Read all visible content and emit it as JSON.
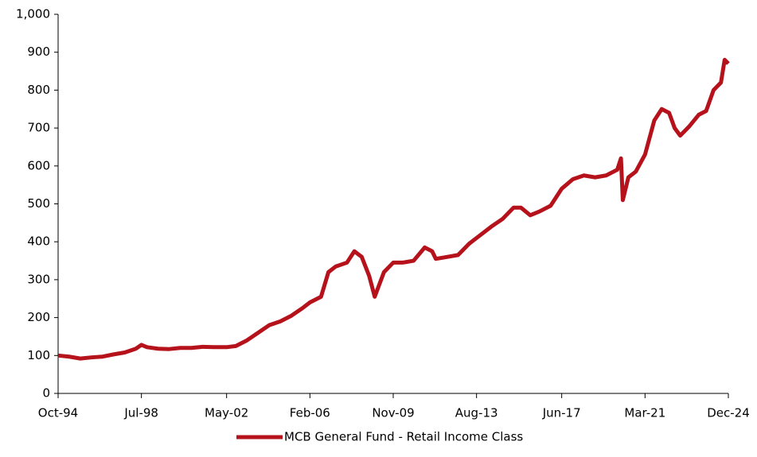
{
  "chart_data": {
    "type": "line",
    "x": [
      "1994-10",
      "1995-04",
      "1995-10",
      "1996-04",
      "1996-10",
      "1997-04",
      "1997-10",
      "1998-04",
      "1998-07",
      "1998-10",
      "1999-04",
      "1999-10",
      "2000-04",
      "2000-10",
      "2001-04",
      "2001-10",
      "2002-05",
      "2002-10",
      "2003-04",
      "2003-10",
      "2004-04",
      "2004-10",
      "2005-04",
      "2005-10",
      "2006-02",
      "2006-08",
      "2006-12",
      "2007-04",
      "2007-10",
      "2008-02",
      "2008-06",
      "2008-10",
      "2009-01",
      "2009-06",
      "2009-11",
      "2010-04",
      "2010-10",
      "2011-04",
      "2011-08",
      "2011-10",
      "2012-04",
      "2012-10",
      "2013-04",
      "2013-08",
      "2014-04",
      "2014-10",
      "2015-04",
      "2015-08",
      "2016-01",
      "2016-06",
      "2016-12",
      "2017-06",
      "2017-12",
      "2018-06",
      "2018-12",
      "2019-06",
      "2019-12",
      "2020-02",
      "2020-03",
      "2020-06",
      "2020-10",
      "2021-03",
      "2021-08",
      "2021-12",
      "2022-04",
      "2022-07",
      "2022-10",
      "2023-03",
      "2023-08",
      "2023-12",
      "2024-04",
      "2024-08",
      "2024-10",
      "2024-12"
    ],
    "series": [
      {
        "name": "MCB General Fund - Retail Income Class",
        "color": "#b5121b",
        "values": [
          100,
          97,
          92,
          95,
          97,
          103,
          108,
          118,
          128,
          122,
          118,
          117,
          120,
          120,
          123,
          122,
          122,
          125,
          140,
          160,
          180,
          190,
          205,
          225,
          240,
          255,
          320,
          335,
          345,
          375,
          360,
          310,
          255,
          320,
          345,
          345,
          350,
          385,
          375,
          355,
          360,
          365,
          395,
          410,
          440,
          460,
          490,
          490,
          470,
          480,
          495,
          540,
          565,
          575,
          570,
          575,
          590,
          620,
          510,
          570,
          585,
          630,
          720,
          750,
          740,
          700,
          680,
          705,
          735,
          745,
          800,
          820,
          880,
          870
        ]
      }
    ],
    "xlim": [
      "1994-10",
      "2024-12"
    ],
    "xticks": [
      {
        "value": "1994-10",
        "label": "Oct-94"
      },
      {
        "value": "1998-07",
        "label": "Jul-98"
      },
      {
        "value": "2002-05",
        "label": "May-02"
      },
      {
        "value": "2006-02",
        "label": "Feb-06"
      },
      {
        "value": "2009-11",
        "label": "Nov-09"
      },
      {
        "value": "2013-08",
        "label": "Aug-13"
      },
      {
        "value": "2017-06",
        "label": "Jun-17"
      },
      {
        "value": "2021-03",
        "label": "Mar-21"
      },
      {
        "value": "2024-12",
        "label": "Dec-24"
      }
    ],
    "ylim": [
      0,
      1000
    ],
    "yticks": [
      0,
      100,
      200,
      300,
      400,
      500,
      600,
      700,
      800,
      900,
      {
        "value": 1000,
        "label": "1,000"
      }
    ],
    "grid": false,
    "legend": "bottom"
  }
}
